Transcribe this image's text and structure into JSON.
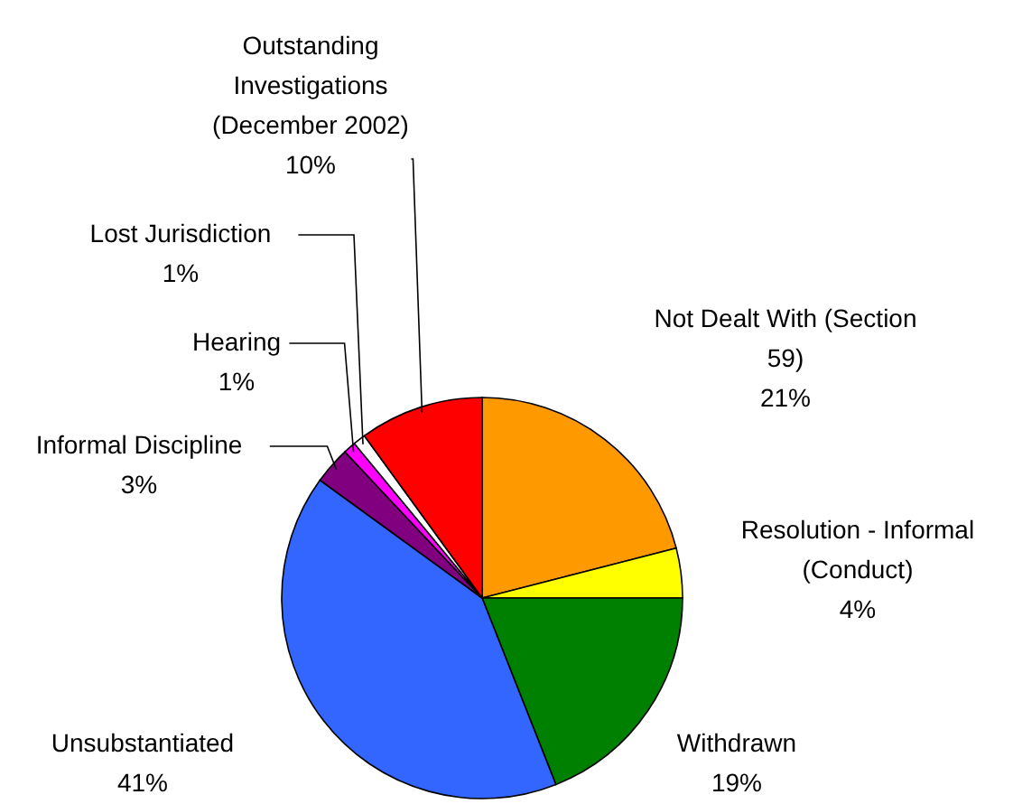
{
  "chart_data": {
    "type": "pie",
    "categories": [
      "Not Dealt With (Section 59)",
      "Resolution - Informal (Conduct)",
      "Withdrawn",
      "Unsubstantiated",
      "Informal Discipline",
      "Hearing",
      "Lost Jurisdiction",
      "Outstanding Investigations (December 2002)"
    ],
    "values": [
      21,
      4,
      19,
      41,
      3,
      1,
      1,
      10
    ],
    "value_labels": [
      "21%",
      "4%",
      "19%",
      "41%",
      "3%",
      "1%",
      "1%",
      "10%"
    ],
    "colors": [
      "#ff9900",
      "#ffff00",
      "#008000",
      "#3366ff",
      "#800080",
      "#ff00ff",
      "#ffffff",
      "#ff0000"
    ]
  }
}
